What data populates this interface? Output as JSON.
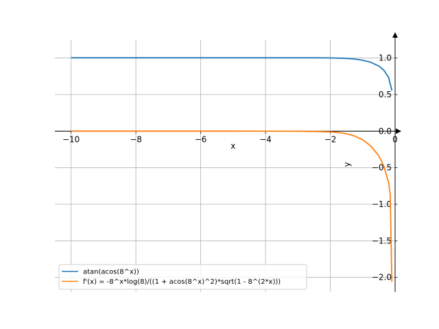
{
  "chart_data": {
    "type": "line",
    "xlabel": "x",
    "ylabel": "y",
    "xlim": [
      -10.5,
      0.0
    ],
    "ylim": [
      -2.2,
      1.25
    ],
    "xticks": [
      -10,
      -8,
      -6,
      -4,
      -2,
      0
    ],
    "xtick_labels": [
      "−10",
      "−8",
      "−6",
      "−4",
      "−2",
      "0"
    ],
    "yticks": [
      1.0,
      0.5,
      0.0,
      -0.5,
      -1.0,
      -1.5,
      -2.0
    ],
    "ytick_labels": [
      "1.0",
      "0.5",
      "0.0",
      "−0.5",
      "−1.0",
      "−1.5",
      "−2.0"
    ],
    "grid": true,
    "legend_position": "lower-left",
    "series": [
      {
        "name": "atan(acos(8^x))",
        "color": "#1f77b4",
        "x": [
          -10,
          -9,
          -8,
          -7,
          -6,
          -5,
          -4,
          -3,
          -2.5,
          -2,
          -1.75,
          -1.5,
          -1.25,
          -1,
          -0.75,
          -0.5,
          -0.35,
          -0.2,
          -0.1
        ],
        "y": [
          1.0038,
          1.0038,
          1.0038,
          1.0038,
          1.0038,
          1.0038,
          1.0038,
          1.0035,
          1.0031,
          1.0014,
          0.999,
          0.9953,
          0.987,
          0.9693,
          0.9417,
          0.8897,
          0.8338,
          0.7335,
          0.5557
        ]
      },
      {
        "name": "f'(x) = -8^x*log(8)/((1 + acos(8^x)^2)*sqrt(1 - 8^(2*x)))",
        "color": "#ff7f0e",
        "x": [
          -10,
          -9,
          -8,
          -7,
          -6,
          -5,
          -4,
          -3,
          -2.5,
          -2,
          -1.75,
          -1.5,
          -1.25,
          -1,
          -0.75,
          -0.5,
          -0.35,
          -0.2,
          -0.15,
          -0.1
        ],
        "y": [
          0.0,
          0.0,
          0.0,
          0.0,
          0.0,
          0.0,
          -0.0002,
          -0.0015,
          -0.0045,
          -0.0093,
          -0.0197,
          -0.0355,
          -0.066,
          -0.1181,
          -0.2028,
          -0.3395,
          -0.4755,
          -0.7066,
          -0.8686,
          -2.06
        ]
      }
    ]
  }
}
